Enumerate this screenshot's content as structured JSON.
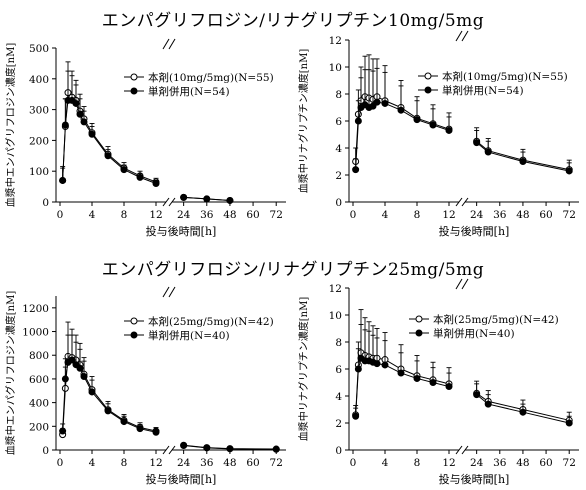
{
  "sections": [
    {
      "title": "エンパグリフロジン/リナグリプチン10mg/5mg"
    },
    {
      "title": "エンパグリフロジン/リナグリプチン25mg/5mg"
    }
  ],
  "chart_data": [
    {
      "type": "line",
      "xlabel": "投与後時間[h]",
      "ylabel": "血漿中エンパグリフロジン濃度[nM]",
      "ylim": [
        0,
        500
      ],
      "yticks": [
        0,
        100,
        200,
        300,
        400,
        500
      ],
      "xticks": [
        0,
        4,
        8,
        12,
        24,
        36,
        48,
        60,
        72
      ],
      "axis_break": [
        13,
        19
      ],
      "legend": "top-right",
      "series": [
        {
          "name": "本剤(10mg/5mg)(N=55)",
          "marker": "open-circle",
          "x": [
            0.33,
            0.67,
            1,
            1.5,
            2,
            2.5,
            3,
            4,
            6,
            8,
            10,
            12,
            24,
            36,
            48
          ],
          "y": [
            70,
            245,
            355,
            340,
            330,
            295,
            270,
            225,
            155,
            110,
            85,
            65,
            15,
            10,
            5
          ],
          "err": [
            45,
            90,
            100,
            85,
            65,
            55,
            40,
            30,
            25,
            18,
            15,
            12,
            5,
            4,
            3
          ]
        },
        {
          "name": "単剤併用(N=54)",
          "marker": "filled-circle",
          "x": [
            0.33,
            0.67,
            1,
            1.5,
            2,
            2.5,
            3,
            4,
            6,
            8,
            10,
            12,
            24,
            36,
            48
          ],
          "y": [
            70,
            250,
            330,
            330,
            320,
            285,
            260,
            220,
            150,
            105,
            80,
            60,
            15,
            10,
            5
          ],
          "err": [
            40,
            85,
            95,
            80,
            60,
            50,
            35,
            25,
            20,
            15,
            12,
            10,
            4,
            3,
            2
          ]
        }
      ]
    },
    {
      "type": "line",
      "xlabel": "投与後時間[h]",
      "ylabel": "血漿中リナグリプチン濃度[nM]",
      "ylim": [
        0,
        12
      ],
      "yticks": [
        0,
        2,
        4,
        6,
        8,
        10,
        12
      ],
      "xticks": [
        0,
        4,
        8,
        12,
        24,
        36,
        48,
        60,
        72
      ],
      "axis_break": [
        13,
        19
      ],
      "legend": "top-right",
      "series": [
        {
          "name": "本剤(10mg/5mg)(N=55)",
          "marker": "open-circle",
          "x": [
            0.33,
            0.67,
            1,
            1.5,
            2,
            2.5,
            3,
            4,
            6,
            8,
            10,
            12,
            24,
            30,
            48,
            72
          ],
          "y": [
            3.0,
            6.5,
            7.5,
            7.8,
            7.7,
            7.6,
            7.8,
            7.5,
            7.0,
            6.2,
            5.8,
            5.4,
            4.5,
            3.8,
            3.1,
            2.4
          ],
          "err": [
            1.0,
            1.8,
            2.5,
            3.0,
            3.2,
            3.0,
            2.8,
            2.6,
            2.0,
            1.6,
            1.4,
            1.2,
            1.0,
            0.9,
            0.8,
            0.7
          ]
        },
        {
          "name": "単剤併用(N=54)",
          "marker": "filled-circle",
          "x": [
            0.33,
            0.67,
            1,
            1.5,
            2,
            2.5,
            3,
            4,
            6,
            8,
            10,
            12,
            24,
            30,
            48,
            72
          ],
          "y": [
            2.4,
            6.0,
            7.0,
            7.2,
            7.0,
            7.1,
            7.4,
            7.3,
            6.8,
            6.1,
            5.7,
            5.3,
            4.4,
            3.7,
            3.0,
            2.3
          ],
          "err": [
            0.8,
            1.5,
            2.2,
            2.6,
            2.8,
            2.6,
            2.5,
            2.3,
            1.8,
            1.4,
            1.2,
            1.0,
            0.9,
            0.8,
            0.7,
            0.6
          ]
        }
      ]
    },
    {
      "type": "line",
      "xlabel": "投与後時間[h]",
      "ylabel": "血漿中エンパグリフロジン濃度[nM]",
      "ylim": [
        0,
        1300
      ],
      "yticks": [
        0,
        200,
        400,
        600,
        800,
        1000,
        1200
      ],
      "xticks": [
        0,
        4,
        8,
        12,
        24,
        36,
        48,
        60,
        72
      ],
      "axis_break": [
        13,
        19
      ],
      "legend": "top-right",
      "series": [
        {
          "name": "本剤(25mg/5mg)(N=42)",
          "marker": "open-circle",
          "x": [
            0.33,
            0.67,
            1,
            1.5,
            2,
            2.5,
            3,
            4,
            6,
            8,
            10,
            12,
            24,
            36,
            48,
            72
          ],
          "y": [
            130,
            520,
            790,
            780,
            760,
            720,
            640,
            510,
            340,
            250,
            190,
            160,
            40,
            20,
            12,
            8
          ],
          "err": [
            50,
            180,
            290,
            240,
            210,
            180,
            140,
            110,
            70,
            50,
            40,
            30,
            10,
            6,
            4,
            3
          ]
        },
        {
          "name": "単剤併用(N=40)",
          "marker": "filled-circle",
          "x": [
            0.33,
            0.67,
            1,
            1.5,
            2,
            2.5,
            3,
            4,
            6,
            8,
            10,
            12,
            24,
            36,
            48,
            72
          ],
          "y": [
            160,
            600,
            740,
            760,
            720,
            690,
            620,
            490,
            330,
            240,
            180,
            150,
            38,
            18,
            10,
            6
          ],
          "err": [
            60,
            170,
            230,
            210,
            190,
            160,
            130,
            100,
            60,
            45,
            35,
            28,
            9,
            5,
            3,
            2
          ]
        }
      ]
    },
    {
      "type": "line",
      "xlabel": "投与後時間[h]",
      "ylabel": "血漿中リナグリプチン濃度[nM]",
      "ylim": [
        0,
        12
      ],
      "yticks": [
        0,
        2,
        4,
        6,
        8,
        10,
        12
      ],
      "xticks": [
        0,
        4,
        8,
        12,
        24,
        36,
        48,
        60,
        72
      ],
      "axis_break": [
        13,
        19
      ],
      "legend": "top-right",
      "series": [
        {
          "name": "本剤(25mg/5mg)(N=42)",
          "marker": "open-circle",
          "x": [
            0.33,
            0.67,
            1,
            1.5,
            2,
            2.5,
            3,
            4,
            6,
            8,
            10,
            12,
            24,
            30,
            48,
            72
          ],
          "y": [
            2.6,
            6.3,
            7.2,
            7.0,
            6.9,
            6.8,
            6.8,
            6.7,
            6.0,
            5.5,
            5.2,
            4.9,
            4.2,
            3.6,
            3.0,
            2.2
          ],
          "err": [
            0.7,
            1.7,
            3.2,
            2.8,
            2.6,
            2.4,
            2.2,
            2.0,
            1.8,
            1.5,
            1.3,
            1.2,
            0.9,
            0.8,
            0.7,
            0.6
          ]
        },
        {
          "name": "単剤併用(N=40)",
          "marker": "filled-circle",
          "x": [
            0.33,
            0.67,
            1,
            1.5,
            2,
            2.5,
            3,
            4,
            6,
            8,
            10,
            12,
            24,
            30,
            48,
            72
          ],
          "y": [
            2.5,
            6.0,
            6.8,
            6.6,
            6.6,
            6.5,
            6.4,
            6.3,
            5.7,
            5.3,
            5.0,
            4.7,
            4.1,
            3.4,
            2.8,
            2.0
          ],
          "err": [
            0.6,
            1.5,
            2.5,
            2.3,
            2.2,
            2.0,
            1.9,
            1.8,
            1.5,
            1.3,
            1.1,
            1.0,
            0.8,
            0.7,
            0.6,
            0.5
          ]
        }
      ]
    }
  ]
}
